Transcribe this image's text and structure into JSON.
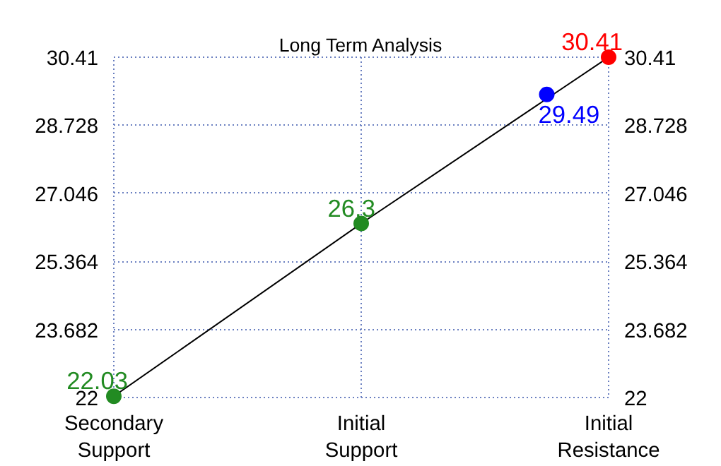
{
  "chart_data": {
    "type": "scatter",
    "title": "Long Term Analysis",
    "categories": [
      "Secondary Support",
      null,
      null,
      null,
      "Initial Support",
      null,
      null,
      null,
      "Initial Resistance"
    ],
    "ylim": [
      22,
      30.41
    ],
    "yticks": [
      22,
      23.682,
      25.364,
      27.046,
      28.728,
      30.41
    ],
    "y2lim": [
      22,
      30.41
    ],
    "y2ticks": [
      22,
      23.682,
      25.364,
      27.046,
      28.728,
      30.41
    ],
    "series": [
      {
        "type": "line",
        "color": "#000000",
        "values": [
          22.03,
          null,
          null,
          null,
          26.3,
          null,
          null,
          null,
          30.41
        ],
        "marker": "none"
      },
      {
        "colors": [
          "#228b22",
          null,
          null,
          null,
          "#228b22",
          null,
          null,
          "#0000ff",
          "#ff0000"
        ],
        "values": [
          22.03,
          null,
          null,
          null,
          26.3,
          null,
          null,
          29.49,
          30.41
        ],
        "value_labels": [
          "22.03",
          null,
          null,
          null,
          "26.3",
          null,
          null,
          "29.49",
          "30.41"
        ],
        "marker": "circle"
      }
    ],
    "grid": true
  }
}
